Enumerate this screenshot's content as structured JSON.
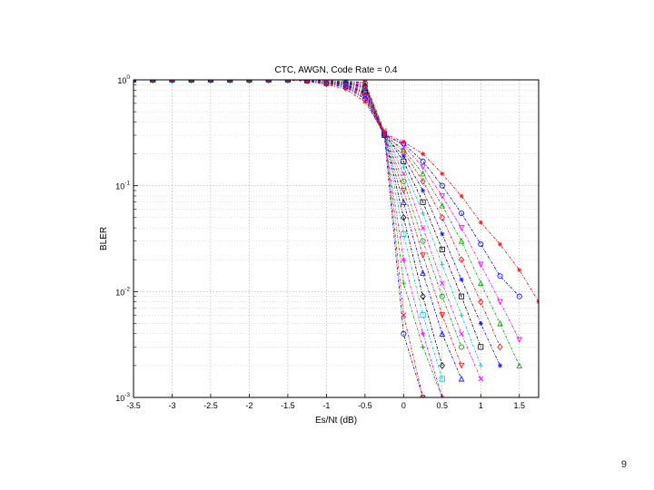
{
  "slide": {
    "page_number": "9"
  },
  "chart_data": {
    "type": "line",
    "title": "CTC, AWGN, Code Rate = 0.4",
    "xlabel": "Es/Nt (dB)",
    "ylabel": "BLER",
    "xlim": [
      -3.5,
      1.75
    ],
    "ylim": [
      0.001,
      1
    ],
    "yscale": "log",
    "xticks": [
      -3.5,
      -3,
      -2.5,
      -2,
      -1.5,
      -1,
      -0.5,
      0,
      0.5,
      1,
      1.5
    ],
    "xtick_labels": [
      "-3.5",
      "-3",
      "-2.5",
      "-2",
      "-1.5",
      "-1",
      "-0.5",
      "0",
      "0.5",
      "1",
      "1.5"
    ],
    "yticks": [
      {
        "value": 1,
        "base": "10",
        "exp": "0"
      },
      {
        "value": 0.1,
        "base": "10",
        "exp": "-1"
      },
      {
        "value": 0.01,
        "base": "10",
        "exp": "-2"
      },
      {
        "value": 0.001,
        "base": "10",
        "exp": "-3"
      }
    ],
    "grid": true,
    "legend": false,
    "series": [
      {
        "color": "#0000ff",
        "marker": "o",
        "x": [
          -3.5,
          -3.25,
          -3,
          -2.75,
          -2.5,
          -2.25,
          -2,
          -1.75,
          -1.5,
          -1.25,
          -1,
          -0.75,
          -0.5,
          -0.25,
          0,
          0.25
        ],
        "y": [
          1,
          1,
          1,
          1,
          1,
          1,
          1,
          1,
          1,
          0.99,
          0.98,
          0.97,
          0.93,
          0.3,
          0.004,
          0.001
        ]
      },
      {
        "color": "#ff0000",
        "marker": "x",
        "x": [
          -3.5,
          -3.25,
          -3,
          -2.75,
          -2.5,
          -2.25,
          -2,
          -1.75,
          -1.5,
          -1.25,
          -1,
          -0.75,
          -0.5,
          -0.25,
          0,
          0.25
        ],
        "y": [
          1,
          1,
          1,
          1,
          1,
          1,
          1,
          1,
          1,
          0.99,
          0.98,
          0.97,
          0.95,
          0.33,
          0.006,
          0.001
        ]
      },
      {
        "color": "#00a000",
        "marker": "+",
        "x": [
          -3.5,
          -3.25,
          -3,
          -2.75,
          -2.5,
          -2.25,
          -2,
          -1.75,
          -1.5,
          -1.25,
          -1,
          -0.75,
          -0.5,
          -0.25,
          0,
          0.25,
          0.5
        ],
        "y": [
          1,
          1,
          1,
          1,
          1,
          1,
          1,
          1,
          1,
          0.99,
          0.98,
          0.96,
          0.92,
          0.32,
          0.012,
          0.003,
          0.001
        ]
      },
      {
        "color": "#ff00ff",
        "marker": "*",
        "x": [
          -3.5,
          -3.25,
          -3,
          -2.75,
          -2.5,
          -2.25,
          -2,
          -1.75,
          -1.5,
          -1.25,
          -1,
          -0.75,
          -0.5,
          -0.25,
          0,
          0.25,
          0.5
        ],
        "y": [
          1,
          1,
          1,
          1,
          1,
          1,
          1,
          1,
          1,
          0.99,
          0.97,
          0.95,
          0.9,
          0.3,
          0.02,
          0.004,
          0.001
        ]
      },
      {
        "color": "#00c0c0",
        "marker": "s",
        "x": [
          -3.5,
          -3.25,
          -3,
          -2.75,
          -2.5,
          -2.25,
          -2,
          -1.75,
          -1.5,
          -1.25,
          -1,
          -0.75,
          -0.5,
          -0.25,
          0,
          0.25,
          0.5
        ],
        "y": [
          1,
          1,
          1,
          1,
          1,
          1,
          1,
          1,
          1,
          0.99,
          0.97,
          0.94,
          0.88,
          0.31,
          0.035,
          0.006,
          0.0015
        ]
      },
      {
        "color": "#000000",
        "marker": "d",
        "x": [
          -3.5,
          -3.25,
          -3,
          -2.75,
          -2.5,
          -2.25,
          -2,
          -1.75,
          -1.5,
          -1.25,
          -1,
          -0.75,
          -0.5,
          -0.25,
          0,
          0.25,
          0.5
        ],
        "y": [
          1,
          1,
          1,
          1,
          1,
          1,
          1,
          1,
          1,
          0.99,
          0.97,
          0.94,
          0.87,
          0.31,
          0.05,
          0.009,
          0.002
        ]
      },
      {
        "color": "#0000ff",
        "marker": "^",
        "x": [
          -3.5,
          -3.25,
          -3,
          -2.75,
          -2.5,
          -2.25,
          -2,
          -1.75,
          -1.5,
          -1.25,
          -1,
          -0.75,
          -0.5,
          -0.25,
          0,
          0.25,
          0.5,
          0.75
        ],
        "y": [
          1,
          1,
          1,
          1,
          1,
          1,
          1,
          1,
          1,
          0.99,
          0.96,
          0.93,
          0.85,
          0.3,
          0.07,
          0.015,
          0.004,
          0.0015
        ]
      },
      {
        "color": "#ff0000",
        "marker": "v",
        "x": [
          -3.5,
          -3.25,
          -3,
          -2.75,
          -2.5,
          -2.25,
          -2,
          -1.75,
          -1.5,
          -1.25,
          -1,
          -0.75,
          -0.5,
          -0.25,
          0,
          0.25,
          0.5,
          0.75
        ],
        "y": [
          1,
          1,
          1,
          1,
          1,
          1,
          1,
          1,
          1,
          0.99,
          0.96,
          0.92,
          0.84,
          0.31,
          0.09,
          0.022,
          0.006,
          0.002
        ]
      },
      {
        "color": "#00a000",
        "marker": "o",
        "x": [
          -3.5,
          -3.25,
          -3,
          -2.75,
          -2.5,
          -2.25,
          -2,
          -1.75,
          -1.5,
          -1.25,
          -1,
          -0.75,
          -0.5,
          -0.25,
          0,
          0.25,
          0.5,
          0.75
        ],
        "y": [
          1,
          1,
          1,
          1,
          1,
          1,
          1,
          1,
          1,
          0.99,
          0.96,
          0.92,
          0.82,
          0.3,
          0.11,
          0.03,
          0.009,
          0.003
        ]
      },
      {
        "color": "#ff00ff",
        "marker": "x",
        "x": [
          -3.5,
          -3.25,
          -3,
          -2.75,
          -2.5,
          -2.25,
          -2,
          -1.75,
          -1.5,
          -1.25,
          -1,
          -0.75,
          -0.5,
          -0.25,
          0,
          0.25,
          0.5,
          0.75,
          1
        ],
        "y": [
          1,
          1,
          1,
          1,
          1,
          1,
          1,
          1,
          1,
          0.99,
          0.95,
          0.91,
          0.8,
          0.31,
          0.13,
          0.04,
          0.012,
          0.004,
          0.0015
        ]
      },
      {
        "color": "#00c0c0",
        "marker": "+",
        "x": [
          -3.5,
          -3.25,
          -3,
          -2.75,
          -2.5,
          -2.25,
          -2,
          -1.75,
          -1.5,
          -1.25,
          -1,
          -0.75,
          -0.5,
          -0.25,
          0,
          0.25,
          0.5,
          0.75,
          1
        ],
        "y": [
          1,
          1,
          1,
          1,
          1,
          1,
          1,
          1,
          1,
          0.99,
          0.95,
          0.9,
          0.78,
          0.3,
          0.15,
          0.055,
          0.018,
          0.006,
          0.002
        ]
      },
      {
        "color": "#000000",
        "marker": "s",
        "x": [
          -3.5,
          -3.25,
          -3,
          -2.75,
          -2.5,
          -2.25,
          -2,
          -1.75,
          -1.5,
          -1.25,
          -1,
          -0.75,
          -0.5,
          -0.25,
          0,
          0.25,
          0.5,
          0.75,
          1
        ],
        "y": [
          1,
          1,
          1,
          1,
          1,
          1,
          1,
          1,
          1,
          0.98,
          0.95,
          0.9,
          0.76,
          0.31,
          0.17,
          0.07,
          0.025,
          0.009,
          0.003
        ]
      },
      {
        "color": "#0000ff",
        "marker": "*",
        "x": [
          -3.5,
          -3.25,
          -3,
          -2.75,
          -2.5,
          -2.25,
          -2,
          -1.75,
          -1.5,
          -1.25,
          -1,
          -0.75,
          -0.5,
          -0.25,
          0,
          0.25,
          0.5,
          0.75,
          1,
          1.25
        ],
        "y": [
          1,
          1,
          1,
          1,
          1,
          1,
          1,
          1,
          1,
          0.98,
          0.94,
          0.89,
          0.74,
          0.3,
          0.19,
          0.09,
          0.035,
          0.013,
          0.005,
          0.002
        ]
      },
      {
        "color": "#ff0000",
        "marker": "d",
        "x": [
          -3.5,
          -3.25,
          -3,
          -2.75,
          -2.5,
          -2.25,
          -2,
          -1.75,
          -1.5,
          -1.25,
          -1,
          -0.75,
          -0.5,
          -0.25,
          0,
          0.25,
          0.5,
          0.75,
          1,
          1.25
        ],
        "y": [
          1,
          1,
          1,
          1,
          1,
          1,
          1,
          1,
          1,
          0.98,
          0.94,
          0.88,
          0.72,
          0.31,
          0.21,
          0.11,
          0.05,
          0.02,
          0.008,
          0.003
        ]
      },
      {
        "color": "#00a000",
        "marker": "^",
        "x": [
          -3.5,
          -3.25,
          -3,
          -2.75,
          -2.5,
          -2.25,
          -2,
          -1.75,
          -1.5,
          -1.25,
          -1,
          -0.75,
          -0.5,
          -0.25,
          0,
          0.25,
          0.5,
          0.75,
          1,
          1.25,
          1.5
        ],
        "y": [
          1,
          1,
          1,
          1,
          1,
          1,
          1,
          1,
          1,
          0.98,
          0.93,
          0.87,
          0.7,
          0.3,
          0.22,
          0.13,
          0.065,
          0.03,
          0.012,
          0.005,
          0.002
        ]
      },
      {
        "color": "#ff00ff",
        "marker": "v",
        "x": [
          -3.5,
          -3.25,
          -3,
          -2.75,
          -2.5,
          -2.25,
          -2,
          -1.75,
          -1.5,
          -1.25,
          -1,
          -0.75,
          -0.5,
          -0.25,
          0,
          0.25,
          0.5,
          0.75,
          1,
          1.25,
          1.5
        ],
        "y": [
          1,
          1,
          1,
          1,
          1,
          1,
          1,
          1,
          1,
          0.98,
          0.93,
          0.86,
          0.68,
          0.31,
          0.24,
          0.15,
          0.08,
          0.04,
          0.018,
          0.008,
          0.0035
        ]
      },
      {
        "color": "#0000ff",
        "marker": "o",
        "x": [
          -3.5,
          -3.25,
          -3,
          -2.75,
          -2.5,
          -2.25,
          -2,
          -1.75,
          -1.5,
          -1.25,
          -1,
          -0.75,
          -0.5,
          -0.25,
          0,
          0.25,
          0.5,
          0.75,
          1,
          1.25,
          1.5
        ],
        "y": [
          1,
          1,
          1,
          1,
          1,
          1,
          1,
          1,
          1,
          0.98,
          0.92,
          0.85,
          0.66,
          0.3,
          0.25,
          0.17,
          0.1,
          0.055,
          0.028,
          0.014,
          0.009
        ]
      },
      {
        "color": "#ff0000",
        "marker": "*",
        "x": [
          -3.5,
          -3.25,
          -3,
          -2.75,
          -2.5,
          -2.25,
          -2,
          -1.75,
          -1.5,
          -1.25,
          -1,
          -0.75,
          -0.5,
          -0.25,
          0,
          0.25,
          0.5,
          0.75,
          1,
          1.25,
          1.5,
          1.75
        ],
        "y": [
          1,
          1,
          1,
          1,
          1,
          1,
          1,
          1,
          1,
          0.97,
          0.9,
          0.82,
          0.62,
          0.31,
          0.26,
          0.2,
          0.13,
          0.08,
          0.045,
          0.028,
          0.016,
          0.008
        ]
      }
    ]
  }
}
